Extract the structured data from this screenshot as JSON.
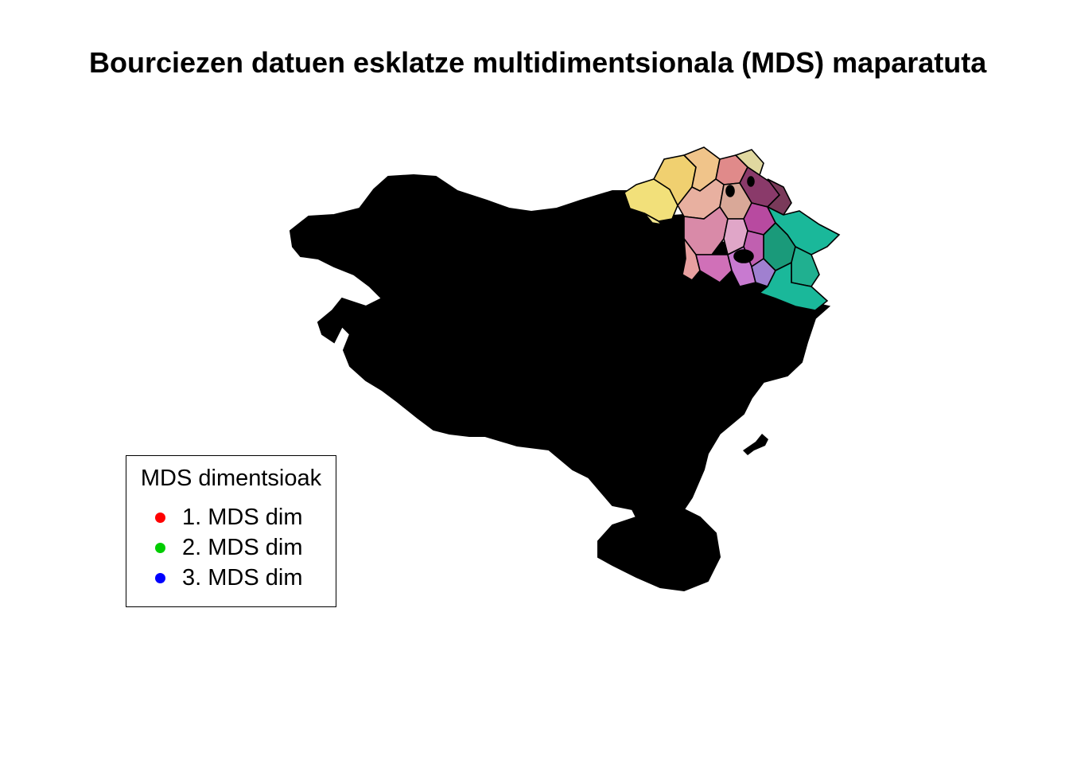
{
  "title": "Bourciezen datuen esklatze multidimentsionala (MDS) maparatuta",
  "legend": {
    "title": "MDS dimentsioak",
    "items": [
      {
        "label": "1. MDS dim",
        "color": "#ff0000"
      },
      {
        "label": "2. MDS dim",
        "color": "#00cd00"
      },
      {
        "label": "3. MDS dim",
        "color": "#0000ff"
      }
    ]
  },
  "colors": {
    "background": "#ffffff",
    "region_fill": "#000000",
    "palette": [
      "#f2e07a",
      "#f0c48a",
      "#e08a8a",
      "#d98aa8",
      "#e0a6c8",
      "#b84aa0",
      "#8a3a6a",
      "#c87ad0",
      "#1ab89a",
      "#1a9a7a",
      "#e0d8a0",
      "#e8b0a0"
    ]
  }
}
